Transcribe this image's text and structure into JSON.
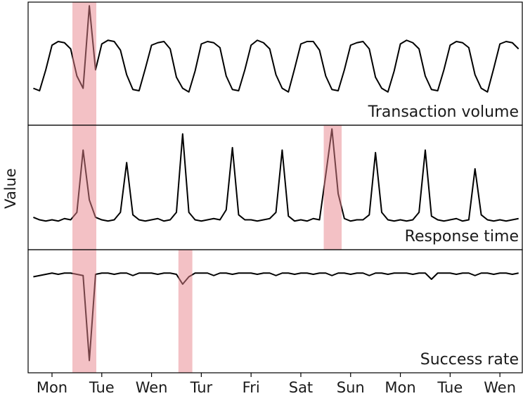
{
  "chart_data": {
    "type": "line",
    "ylabel": "Value",
    "line_color": "#000000",
    "highlight_color": "#e8838c",
    "xlim": [
      -0.48,
      9.45
    ],
    "xticks": [
      {
        "value": 0,
        "label": "Mon"
      },
      {
        "value": 1,
        "label": "Tue"
      },
      {
        "value": 2,
        "label": "Wen"
      },
      {
        "value": 3,
        "label": "Tur"
      },
      {
        "value": 4,
        "label": "Fri"
      },
      {
        "value": 5,
        "label": "Sat"
      },
      {
        "value": 6,
        "label": "Sun"
      },
      {
        "value": 7,
        "label": "Mon"
      },
      {
        "value": 8,
        "label": "Tue"
      },
      {
        "value": 9,
        "label": "Wen"
      }
    ],
    "x": [
      -0.375,
      -0.25,
      -0.125,
      0,
      0.125,
      0.25,
      0.375,
      0.5,
      0.625,
      0.75,
      0.875,
      1,
      1.125,
      1.25,
      1.375,
      1.5,
      1.625,
      1.75,
      1.875,
      2,
      2.125,
      2.25,
      2.375,
      2.5,
      2.625,
      2.75,
      2.875,
      3,
      3.125,
      3.25,
      3.375,
      3.5,
      3.625,
      3.75,
      3.875,
      4,
      4.125,
      4.25,
      4.375,
      4.5,
      4.625,
      4.75,
      4.875,
      5,
      5.125,
      5.25,
      5.375,
      5.5,
      5.625,
      5.75,
      5.875,
      6,
      6.125,
      6.25,
      6.375,
      6.5,
      6.625,
      6.75,
      6.875,
      7,
      7.125,
      7.25,
      7.375,
      7.5,
      7.625,
      7.75,
      7.875,
      8,
      8.125,
      8.25,
      8.375,
      8.5,
      8.625,
      8.75,
      8.875,
      9,
      9.125,
      9.25,
      9.375
    ],
    "panels": [
      {
        "title": "Transaction volume",
        "ylim": [
          0,
          100
        ],
        "highlights": [
          [
            0.41,
            0.89
          ]
        ],
        "values": [
          30,
          28,
          45,
          65,
          68,
          67,
          62,
          40,
          30,
          97,
          45,
          66,
          69,
          68,
          61,
          41,
          29,
          28,
          46,
          65,
          67,
          68,
          62,
          39,
          30,
          27,
          44,
          66,
          68,
          67,
          63,
          40,
          29,
          28,
          45,
          65,
          69,
          67,
          62,
          41,
          30,
          27,
          46,
          66,
          68,
          68,
          61,
          40,
          29,
          28,
          45,
          65,
          67,
          68,
          62,
          39,
          30,
          27,
          44,
          66,
          69,
          67,
          62,
          40,
          29,
          28,
          45,
          65,
          68,
          67,
          63,
          41,
          30,
          27,
          46,
          66,
          68,
          67,
          62
        ]
      },
      {
        "title": "Response time",
        "ylim": [
          0,
          100
        ],
        "highlights": [
          [
            0.41,
            0.89
          ],
          [
            5.46,
            5.82
          ]
        ],
        "values": [
          26,
          24,
          23,
          24,
          23,
          25,
          24,
          30,
          80,
          40,
          26,
          24,
          23,
          24,
          30,
          70,
          28,
          24,
          23,
          24,
          25,
          23,
          24,
          30,
          93,
          30,
          24,
          23,
          24,
          25,
          24,
          32,
          82,
          28,
          24,
          24,
          23,
          24,
          25,
          30,
          80,
          27,
          23,
          24,
          23,
          25,
          24,
          60,
          97,
          45,
          25,
          23,
          24,
          24,
          28,
          78,
          30,
          24,
          23,
          24,
          23,
          24,
          30,
          80,
          27,
          24,
          23,
          24,
          25,
          23,
          24,
          65,
          28,
          24,
          23,
          24,
          23,
          24,
          25
        ]
      },
      {
        "title": "Success rate",
        "ylim": [
          0,
          100
        ],
        "highlights": [
          [
            0.41,
            0.89
          ],
          [
            2.54,
            2.82
          ]
        ],
        "values": [
          78,
          79,
          80,
          81,
          80,
          81,
          81,
          80,
          79,
          10,
          80,
          81,
          81,
          80,
          81,
          81,
          79,
          81,
          81,
          81,
          80,
          81,
          81,
          80,
          72,
          78,
          81,
          81,
          81,
          79,
          81,
          81,
          80,
          81,
          81,
          81,
          80,
          81,
          81,
          79,
          81,
          81,
          80,
          81,
          81,
          80,
          81,
          81,
          79,
          81,
          81,
          80,
          81,
          81,
          79,
          81,
          81,
          80,
          81,
          81,
          81,
          80,
          81,
          81,
          76,
          81,
          81,
          81,
          80,
          81,
          81,
          79,
          81,
          81,
          80,
          81,
          81,
          80,
          81
        ]
      }
    ]
  }
}
